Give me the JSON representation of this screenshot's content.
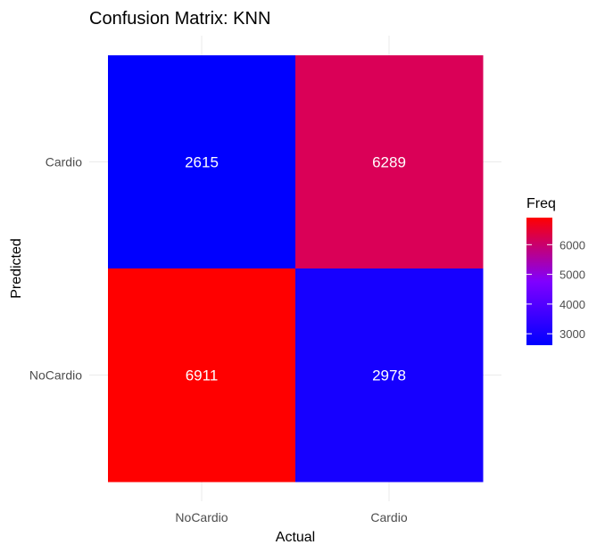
{
  "chart_data": {
    "type": "heatmap",
    "title": "Confusion Matrix: KNN",
    "xlabel": "Actual",
    "ylabel": "Predicted",
    "x_categories": [
      "NoCardio",
      "Cardio"
    ],
    "y_categories": [
      "NoCardio",
      "Cardio"
    ],
    "cells": [
      {
        "x": "NoCardio",
        "y": "Cardio",
        "value": 2615
      },
      {
        "x": "Cardio",
        "y": "Cardio",
        "value": 6289
      },
      {
        "x": "NoCardio",
        "y": "NoCardio",
        "value": 6911
      },
      {
        "x": "Cardio",
        "y": "NoCardio",
        "value": 2978
      }
    ],
    "legend": {
      "title": "Freq",
      "placement": "right",
      "ticks": [
        3000,
        4000,
        5000,
        6000
      ],
      "range": [
        2615,
        6911
      ],
      "low_color": "#0000ff",
      "high_color": "#ff0000"
    },
    "grid": true
  }
}
